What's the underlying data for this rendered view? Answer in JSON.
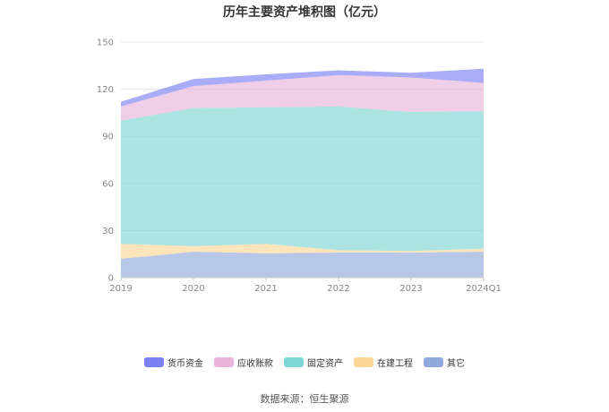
{
  "chart_data": {
    "type": "area",
    "stacked": true,
    "title": "历年主要资产堆积图（亿元）",
    "categories": [
      "2019",
      "2020",
      "2021",
      "2022",
      "2023",
      "2024Q1"
    ],
    "ylim": [
      0,
      150
    ],
    "yticks": [
      0,
      30,
      60,
      90,
      120,
      150
    ],
    "grid": true,
    "legend_position": "bottom",
    "series": [
      {
        "name": "其它",
        "color": "#8fa9dc",
        "values": [
          12.0,
          16.5,
          15.5,
          16.0,
          16.0,
          16.5
        ]
      },
      {
        "name": "在建工程",
        "color": "#fbd795",
        "values": [
          9.5,
          3.5,
          6.0,
          1.5,
          1.0,
          2.0
        ]
      },
      {
        "name": "固定资产",
        "color": "#7fd6d6",
        "values": [
          78.5,
          88.0,
          87.0,
          91.5,
          88.5,
          87.5
        ]
      },
      {
        "name": "应收账款",
        "color": "#e9b3da",
        "values": [
          9.0,
          14.0,
          17.0,
          20.0,
          22.0,
          18.0
        ]
      },
      {
        "name": "货币资金",
        "color": "#7b7ff2",
        "values": [
          3.0,
          4.5,
          4.0,
          3.0,
          3.0,
          9.0
        ]
      }
    ],
    "legend_order": [
      "货币资金",
      "应收账款",
      "固定资产",
      "在建工程",
      "其它"
    ]
  },
  "source": "数据来源：恒生聚源"
}
